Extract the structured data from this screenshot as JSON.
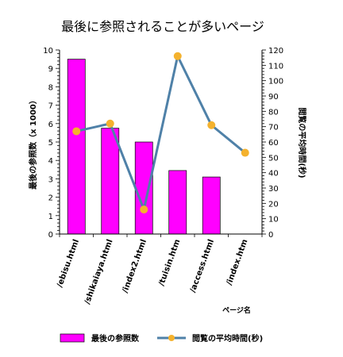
{
  "chart_data": {
    "type": "bar",
    "title": "最後に参照されることが多いページ",
    "xlabel": "ページ名",
    "categories": [
      "/ebisu.html",
      "/shikaiaya.html",
      "/index2.html",
      "/tuisin.htm",
      "/access.html",
      "/index.htm"
    ],
    "series": [
      {
        "name": "最後の参照数",
        "type": "bar",
        "axis": "left",
        "color": "#ff00ff",
        "values": [
          9.5,
          5.75,
          5.0,
          3.45,
          3.1,
          null
        ]
      },
      {
        "name": "閲覧の平均時間(秒)",
        "type": "line",
        "axis": "right",
        "color": "#4f81a8",
        "marker_color": "#f4b22e",
        "values": [
          67,
          72,
          16,
          116,
          71,
          53
        ]
      }
    ],
    "y_left": {
      "label": "最後の参照数（x 1000）",
      "min": 0,
      "max": 10,
      "ticks": [
        0,
        1,
        2,
        3,
        4,
        5,
        6,
        7,
        8,
        9,
        10
      ]
    },
    "y_right": {
      "label": "閲覧の平均時間(秒)",
      "min": 0,
      "max": 120,
      "ticks": [
        0,
        10,
        20,
        30,
        40,
        50,
        60,
        70,
        80,
        90,
        100,
        110,
        120
      ]
    },
    "grid": false,
    "legend_position": "bottom"
  }
}
